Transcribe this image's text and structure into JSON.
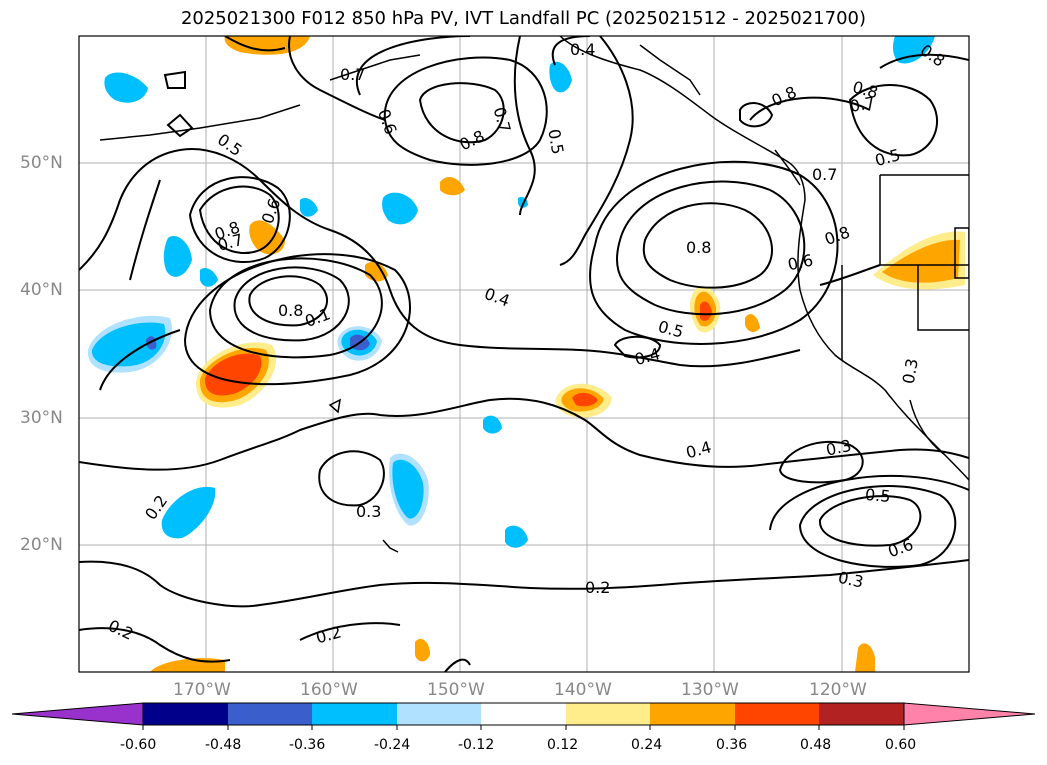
{
  "title": "2025021300 F012 850 hPa PV, IVT Landfall PC (2025021512 - 2025021700)",
  "lat_labels": [
    "50°N",
    "40°N",
    "30°N",
    "20°N"
  ],
  "lon_labels": [
    "170°W",
    "160°W",
    "150°W",
    "140°W",
    "130°W",
    "120°W"
  ],
  "contour_labels": [
    "0.2",
    "0.2",
    "0.2",
    "0.2",
    "0.3",
    "0.3",
    "0.3",
    "0.3",
    "0.4",
    "0.4",
    "0.4",
    "0.4",
    "0.5",
    "0.5",
    "0.5",
    "0.5",
    "0.5",
    "0.6",
    "0.6",
    "0.6",
    "0.6",
    "0.7",
    "0.7",
    "0.7",
    "0.7",
    "0.7",
    "0.8",
    "0.8",
    "0.8",
    "0.8",
    "0.8",
    "0.8",
    "0.8",
    "0.8",
    "0.1"
  ],
  "colorbar": {
    "colors": [
      "#9932cc",
      "#00008b",
      "#3a5fcd",
      "#00bfff",
      "#b0e2ff",
      "#ffffff",
      "#ffec8b",
      "#ffa500",
      "#ff4500",
      "#b22222",
      "#ff82ab"
    ],
    "ticks": [
      "-0.60",
      "-0.48",
      "-0.36",
      "-0.24",
      "-0.12",
      "0.12",
      "0.24",
      "0.36",
      "0.48",
      "0.60"
    ]
  },
  "chart_data": {
    "type": "map",
    "title": "2025021300 F012 850 hPa PV, IVT Landfall PC (2025021512 - 2025021700)",
    "lon_range": [
      "180°W",
      "110°W"
    ],
    "lat_range": [
      "10°N",
      "60°N"
    ],
    "contour_levels": [
      0.1,
      0.2,
      0.3,
      0.4,
      0.5,
      0.6,
      0.7,
      0.8
    ],
    "shading_levels": [
      -0.6,
      -0.48,
      -0.36,
      -0.24,
      -0.12,
      0.12,
      0.24,
      0.36,
      0.48,
      0.6
    ],
    "grid": true
  }
}
